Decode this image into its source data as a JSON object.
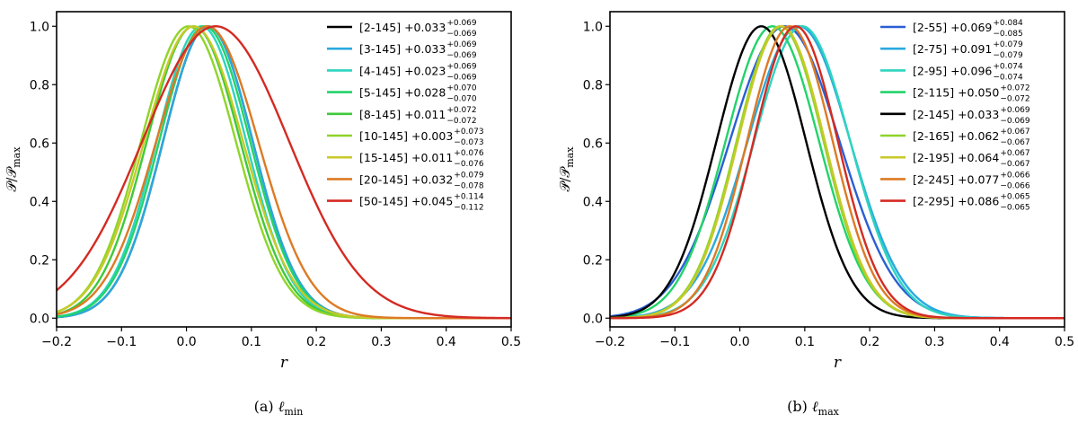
{
  "chart_data": [
    {
      "type": "line",
      "panel": "a",
      "caption_prefix": "(a)",
      "caption_symbol": "ℓ",
      "caption_subscript": "min",
      "xlabel": "r",
      "ylabel": "𝒫/𝒫",
      "ylabel_sub": "max",
      "xlim": [
        -0.2,
        0.5
      ],
      "ylim": [
        -0.03,
        1.05
      ],
      "xticks": [
        -0.2,
        -0.1,
        0.0,
        0.1,
        0.2,
        0.3,
        0.4,
        0.5
      ],
      "xtick_labels": [
        "−0.2",
        "−0.1",
        "0.0",
        "0.1",
        "0.2",
        "0.3",
        "0.4",
        "0.5"
      ],
      "yticks": [
        0.0,
        0.2,
        0.4,
        0.6,
        0.8,
        1.0
      ],
      "ytick_labels": [
        "0.0",
        "0.2",
        "0.4",
        "0.6",
        "0.8",
        "1.0"
      ],
      "legend_position": "top-right",
      "series": [
        {
          "name": "[2-145]",
          "mean": "+0.033",
          "plus": "+0.069",
          "minus": "−0.069",
          "mu": 0.033,
          "sigma": 0.069,
          "color": "#000000"
        },
        {
          "name": "[3-145]",
          "mean": "+0.033",
          "plus": "+0.069",
          "minus": "−0.069",
          "mu": 0.033,
          "sigma": 0.069,
          "color": "#29a9e0"
        },
        {
          "name": "[4-145]",
          "mean": "+0.023",
          "plus": "+0.069",
          "minus": "−0.069",
          "mu": 0.023,
          "sigma": 0.069,
          "color": "#2dd4bf"
        },
        {
          "name": "[5-145]",
          "mean": "+0.028",
          "plus": "+0.070",
          "minus": "−0.070",
          "mu": 0.028,
          "sigma": 0.07,
          "color": "#22d36a"
        },
        {
          "name": "[8-145]",
          "mean": "+0.011",
          "plus": "+0.072",
          "minus": "−0.072",
          "mu": 0.011,
          "sigma": 0.072,
          "color": "#3fc93a"
        },
        {
          "name": "[10-145]",
          "mean": "+0.003",
          "plus": "+0.073",
          "minus": "−0.073",
          "mu": 0.003,
          "sigma": 0.073,
          "color": "#8fd42a"
        },
        {
          "name": "[15-145]",
          "mean": "+0.011",
          "plus": "+0.076",
          "minus": "−0.076",
          "mu": 0.011,
          "sigma": 0.076,
          "color": "#c8c92a"
        },
        {
          "name": "[20-145]",
          "mean": "+0.032",
          "plus": "+0.079",
          "minus": "−0.078",
          "mu": 0.032,
          "sigma": 0.0785,
          "color": "#dd7a24"
        },
        {
          "name": "[50-145]",
          "mean": "+0.045",
          "plus": "+0.114",
          "minus": "−0.112",
          "mu": 0.045,
          "sigma": 0.113,
          "color": "#d42a22"
        }
      ]
    },
    {
      "type": "line",
      "panel": "b",
      "caption_prefix": "(b)",
      "caption_symbol": "ℓ",
      "caption_subscript": "max",
      "xlabel": "r",
      "ylabel": "𝒫/𝒫",
      "ylabel_sub": "max",
      "xlim": [
        -0.2,
        0.5
      ],
      "ylim": [
        -0.03,
        1.05
      ],
      "xticks": [
        -0.2,
        -0.1,
        0.0,
        0.1,
        0.2,
        0.3,
        0.4,
        0.5
      ],
      "xtick_labels": [
        "−0.2",
        "−0.1",
        "0.0",
        "0.1",
        "0.2",
        "0.3",
        "0.4",
        "0.5"
      ],
      "yticks": [
        0.0,
        0.2,
        0.4,
        0.6,
        0.8,
        1.0
      ],
      "ytick_labels": [
        "0.0",
        "0.2",
        "0.4",
        "0.6",
        "0.8",
        "1.0"
      ],
      "legend_position": "top-right",
      "series": [
        {
          "name": "[2-55]",
          "mean": "+0.069",
          "plus": "+0.084",
          "minus": "−0.085",
          "mu": 0.069,
          "sigma": 0.0845,
          "color": "#2a5fd4"
        },
        {
          "name": "[2-75]",
          "mean": "+0.091",
          "plus": "+0.079",
          "minus": "−0.079",
          "mu": 0.091,
          "sigma": 0.079,
          "color": "#29a9e0"
        },
        {
          "name": "[2-95]",
          "mean": "+0.096",
          "plus": "+0.074",
          "minus": "−0.074",
          "mu": 0.096,
          "sigma": 0.074,
          "color": "#2dd4bf"
        },
        {
          "name": "[2-115]",
          "mean": "+0.050",
          "plus": "+0.072",
          "minus": "−0.072",
          "mu": 0.05,
          "sigma": 0.072,
          "color": "#22d36a"
        },
        {
          "name": "[2-145]",
          "mean": "+0.033",
          "plus": "+0.069",
          "minus": "−0.069",
          "mu": 0.033,
          "sigma": 0.069,
          "color": "#000000"
        },
        {
          "name": "[2-165]",
          "mean": "+0.062",
          "plus": "+0.067",
          "minus": "−0.067",
          "mu": 0.062,
          "sigma": 0.067,
          "color": "#8fd42a"
        },
        {
          "name": "[2-195]",
          "mean": "+0.064",
          "plus": "+0.067",
          "minus": "−0.067",
          "mu": 0.064,
          "sigma": 0.067,
          "color": "#c8c92a"
        },
        {
          "name": "[2-245]",
          "mean": "+0.077",
          "plus": "+0.066",
          "minus": "−0.066",
          "mu": 0.077,
          "sigma": 0.066,
          "color": "#dd7a24"
        },
        {
          "name": "[2-295]",
          "mean": "+0.086",
          "plus": "+0.065",
          "minus": "−0.065",
          "mu": 0.086,
          "sigma": 0.065,
          "color": "#d42a22"
        }
      ]
    }
  ]
}
